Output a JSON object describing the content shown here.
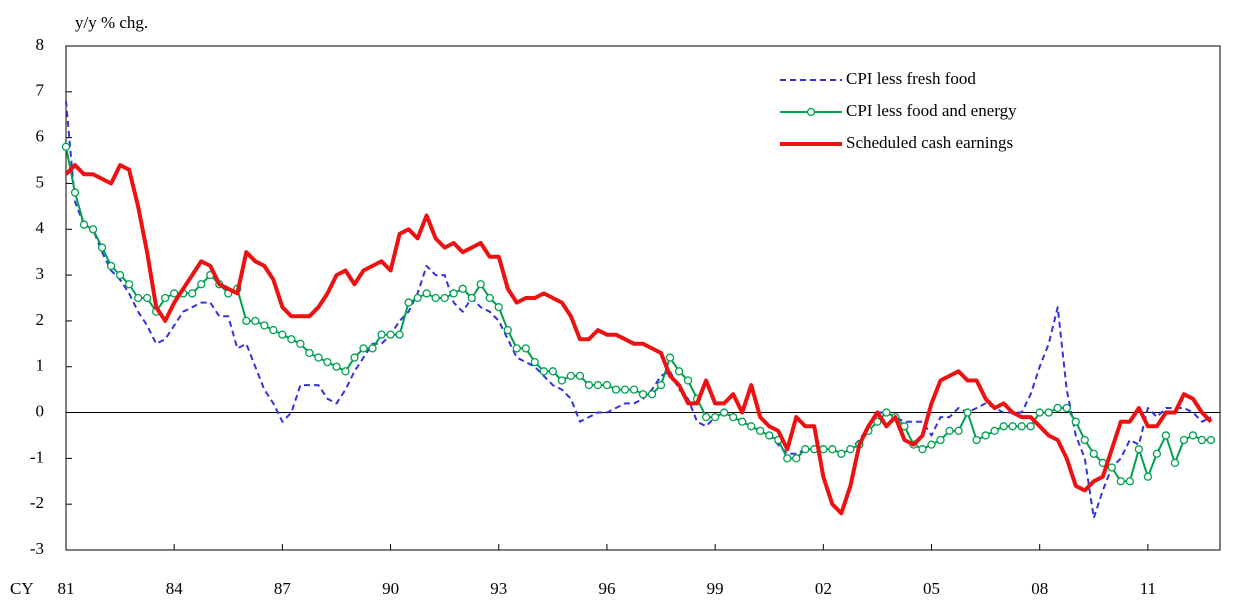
{
  "chart_data": {
    "type": "line",
    "y_label": "y/y % chg.",
    "x_label": "CY",
    "xlim": [
      1981,
      2013
    ],
    "ylim": [
      -3,
      8
    ],
    "yticks": [
      -3,
      -2,
      -1,
      0,
      1,
      2,
      3,
      4,
      5,
      6,
      7,
      8
    ],
    "xticks": [
      {
        "value": 1981,
        "label": "81"
      },
      {
        "value": 1984,
        "label": "84"
      },
      {
        "value": 1987,
        "label": "87"
      },
      {
        "value": 1990,
        "label": "90"
      },
      {
        "value": 1993,
        "label": "93"
      },
      {
        "value": 1996,
        "label": "96"
      },
      {
        "value": 1999,
        "label": "99"
      },
      {
        "value": 2002,
        "label": "02"
      },
      {
        "value": 2005,
        "label": "05"
      },
      {
        "value": 2008,
        "label": "08"
      },
      {
        "value": 2011,
        "label": "11"
      }
    ],
    "grid": false,
    "legend": "top-right",
    "x": [
      1981,
      1981.25,
      1981.5,
      1981.75,
      1982,
      1982.25,
      1982.5,
      1982.75,
      1983,
      1983.25,
      1983.5,
      1983.75,
      1984,
      1984.25,
      1984.5,
      1984.75,
      1985,
      1985.25,
      1985.5,
      1985.75,
      1986,
      1986.25,
      1986.5,
      1986.75,
      1987,
      1987.25,
      1987.5,
      1987.75,
      1988,
      1988.25,
      1988.5,
      1988.75,
      1989,
      1989.25,
      1989.5,
      1989.75,
      1990,
      1990.25,
      1990.5,
      1990.75,
      1991,
      1991.25,
      1991.5,
      1991.75,
      1992,
      1992.25,
      1992.5,
      1992.75,
      1993,
      1993.25,
      1993.5,
      1993.75,
      1994,
      1994.25,
      1994.5,
      1994.75,
      1995,
      1995.25,
      1995.5,
      1995.75,
      1996,
      1996.25,
      1996.5,
      1996.75,
      1997,
      1997.25,
      1997.5,
      1997.75,
      1998,
      1998.25,
      1998.5,
      1998.75,
      1999,
      1999.25,
      1999.5,
      1999.75,
      2000,
      2000.25,
      2000.5,
      2000.75,
      2001,
      2001.25,
      2001.5,
      2001.75,
      2002,
      2002.25,
      2002.5,
      2002.75,
      2003,
      2003.25,
      2003.5,
      2003.75,
      2004,
      2004.25,
      2004.5,
      2004.75,
      2005,
      2005.25,
      2005.5,
      2005.75,
      2006,
      2006.25,
      2006.5,
      2006.75,
      2007,
      2007.25,
      2007.5,
      2007.75,
      2008,
      2008.25,
      2008.5,
      2008.75,
      2009,
      2009.25,
      2009.5,
      2009.75,
      2010,
      2010.25,
      2010.5,
      2010.75,
      2011,
      2011.25,
      2011.5,
      2011.75,
      2012,
      2012.25,
      2012.5,
      2012.75
    ],
    "series": [
      {
        "name": "CPI less fresh food",
        "color": "#3333dd",
        "style": "dashed",
        "markers": false,
        "values": [
          6.8,
          4.6,
          4.1,
          4.0,
          3.5,
          3.1,
          2.9,
          2.6,
          2.2,
          1.9,
          1.5,
          1.6,
          1.9,
          2.2,
          2.3,
          2.4,
          2.4,
          2.1,
          2.1,
          1.4,
          1.5,
          1.0,
          0.5,
          0.2,
          -0.2,
          0.0,
          0.6,
          0.6,
          0.6,
          0.3,
          0.2,
          0.5,
          0.9,
          1.2,
          1.5,
          1.5,
          1.7,
          2.0,
          2.2,
          2.6,
          3.2,
          3.0,
          3.0,
          2.4,
          2.2,
          2.5,
          2.3,
          2.2,
          2.0,
          1.6,
          1.2,
          1.1,
          1.0,
          0.8,
          0.6,
          0.5,
          0.3,
          -0.2,
          -0.1,
          0.0,
          0.0,
          0.1,
          0.2,
          0.2,
          0.3,
          0.5,
          0.8,
          0.9,
          0.5,
          0.3,
          -0.2,
          -0.3,
          -0.1,
          0.0,
          -0.1,
          -0.2,
          -0.3,
          -0.4,
          -0.5,
          -0.7,
          -0.9,
          -0.9,
          -0.8,
          -0.8,
          -0.8,
          -0.8,
          -0.9,
          -0.8,
          -0.6,
          -0.3,
          0.0,
          0.0,
          -0.1,
          -0.2,
          -0.2,
          -0.2,
          -0.5,
          -0.1,
          -0.1,
          0.1,
          0.0,
          0.1,
          0.2,
          0.1,
          0.0,
          0.0,
          0.0,
          0.4,
          1.0,
          1.5,
          2.3,
          0.5,
          -0.5,
          -1.0,
          -2.3,
          -1.7,
          -1.2,
          -1.0,
          -0.6,
          -0.7,
          0.1,
          -0.1,
          0.1,
          0.1,
          0.1,
          0.0,
          -0.2,
          -0.1
        ]
      },
      {
        "name": "CPI less food and energy",
        "color": "#00a050",
        "style": "solid",
        "markers": true,
        "values": [
          5.8,
          4.8,
          4.1,
          4.0,
          3.6,
          3.2,
          3.0,
          2.8,
          2.5,
          2.5,
          2.2,
          2.5,
          2.6,
          2.6,
          2.6,
          2.8,
          3.0,
          2.8,
          2.6,
          2.7,
          2.0,
          2.0,
          1.9,
          1.8,
          1.7,
          1.6,
          1.5,
          1.3,
          1.2,
          1.1,
          1.0,
          0.9,
          1.2,
          1.4,
          1.4,
          1.7,
          1.7,
          1.7,
          2.4,
          2.5,
          2.6,
          2.5,
          2.5,
          2.6,
          2.7,
          2.5,
          2.8,
          2.5,
          2.3,
          1.8,
          1.4,
          1.4,
          1.1,
          0.9,
          0.9,
          0.7,
          0.8,
          0.8,
          0.6,
          0.6,
          0.6,
          0.5,
          0.5,
          0.5,
          0.4,
          0.4,
          0.6,
          1.2,
          0.9,
          0.7,
          0.3,
          -0.1,
          -0.1,
          0.0,
          -0.1,
          -0.2,
          -0.3,
          -0.4,
          -0.5,
          -0.6,
          -1.0,
          -1.0,
          -0.8,
          -0.8,
          -0.8,
          -0.8,
          -0.9,
          -0.8,
          -0.7,
          -0.4,
          -0.2,
          0.0,
          -0.1,
          -0.3,
          -0.7,
          -0.8,
          -0.7,
          -0.6,
          -0.4,
          -0.4,
          0.0,
          -0.6,
          -0.5,
          -0.4,
          -0.3,
          -0.3,
          -0.3,
          -0.3,
          0.0,
          0.0,
          0.1,
          0.1,
          -0.2,
          -0.6,
          -0.9,
          -1.1,
          -1.2,
          -1.5,
          -1.5,
          -0.8,
          -1.4,
          -0.9,
          -0.5,
          -1.1,
          -0.6,
          -0.5,
          -0.6,
          -0.6
        ]
      },
      {
        "name": "Scheduled cash earnings",
        "color": "#ee1111",
        "style": "thick",
        "markers": false,
        "values": [
          5.2,
          5.4,
          5.2,
          5.2,
          5.1,
          5.0,
          5.4,
          5.3,
          4.5,
          3.5,
          2.3,
          2.0,
          2.4,
          2.7,
          3.0,
          3.3,
          3.2,
          2.8,
          2.7,
          2.6,
          3.5,
          3.3,
          3.2,
          2.9,
          2.3,
          2.1,
          2.1,
          2.1,
          2.3,
          2.6,
          3.0,
          3.1,
          2.8,
          3.1,
          3.2,
          3.3,
          3.1,
          3.9,
          4.0,
          3.8,
          4.3,
          3.8,
          3.6,
          3.7,
          3.5,
          3.6,
          3.7,
          3.4,
          3.4,
          2.7,
          2.4,
          2.5,
          2.5,
          2.6,
          2.5,
          2.4,
          2.1,
          1.6,
          1.6,
          1.8,
          1.7,
          1.7,
          1.6,
          1.5,
          1.5,
          1.4,
          1.3,
          0.8,
          0.6,
          0.2,
          0.2,
          0.7,
          0.2,
          0.2,
          0.4,
          0.0,
          0.6,
          -0.1,
          -0.3,
          -0.4,
          -0.8,
          -0.1,
          -0.3,
          -0.3,
          -1.4,
          -2.0,
          -2.2,
          -1.6,
          -0.7,
          -0.3,
          0.0,
          -0.3,
          -0.1,
          -0.6,
          -0.7,
          -0.5,
          0.2,
          0.7,
          0.8,
          0.9,
          0.7,
          0.7,
          0.3,
          0.1,
          0.2,
          0.0,
          -0.1,
          -0.1,
          -0.3,
          -0.5,
          -0.6,
          -1.0,
          -1.6,
          -1.7,
          -1.5,
          -1.4,
          -0.8,
          -0.2,
          -0.2,
          0.1,
          -0.3,
          -0.3,
          0.0,
          0.0,
          0.4,
          0.3,
          0.0,
          -0.2
        ]
      }
    ]
  }
}
